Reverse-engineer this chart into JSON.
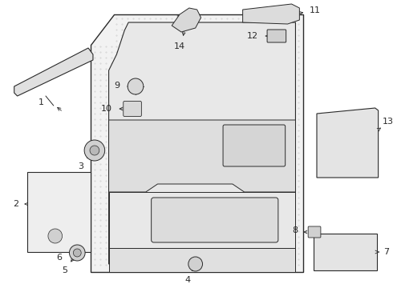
{
  "bg_color": "#ffffff",
  "lc": "#2a2a2a",
  "lw": 0.7,
  "font_size": 8,
  "fig_w": 4.9,
  "fig_h": 3.6,
  "dpi": 100
}
